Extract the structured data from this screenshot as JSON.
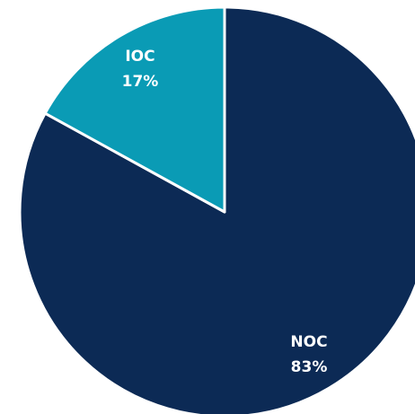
{
  "chart_data": {
    "type": "pie",
    "categories": [
      "NOC",
      "IOC"
    ],
    "values": [
      83,
      17
    ],
    "value_labels": [
      "83%",
      "17%"
    ],
    "colors": [
      "#0c2a55",
      "#0a9bb5"
    ]
  }
}
